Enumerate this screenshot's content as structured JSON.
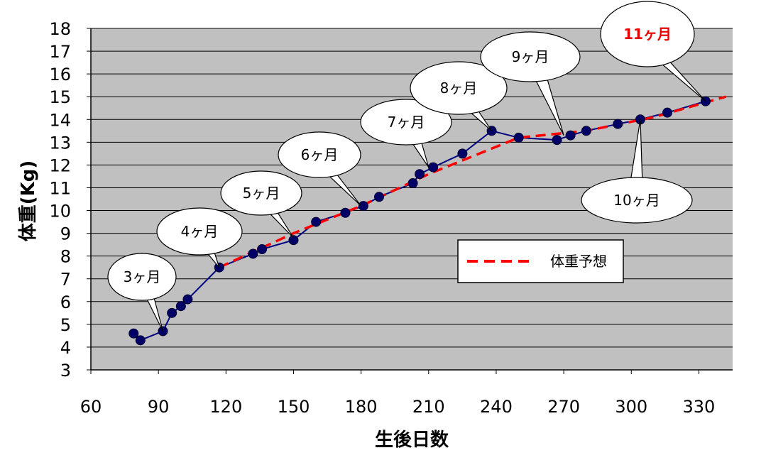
{
  "chart_data": {
    "type": "line",
    "xlabel": "生後日数",
    "ylabel": "体重(Kg)",
    "xlim": [
      60,
      345
    ],
    "ylim": [
      3,
      18
    ],
    "xticks": [
      60,
      90,
      120,
      150,
      180,
      210,
      240,
      270,
      300,
      330
    ],
    "yticks": [
      3,
      4,
      5,
      6,
      7,
      8,
      9,
      10,
      11,
      12,
      13,
      14,
      15,
      16,
      17,
      18
    ],
    "grid": "horizontal",
    "plot_background": "#c0c0c0",
    "legend_position": "center-right",
    "series": [
      {
        "kind": "measured",
        "color": "#000080",
        "marker_color": "#000066",
        "x": [
          79,
          82,
          92,
          96,
          100,
          103,
          117,
          132,
          136,
          150,
          160,
          173,
          181,
          188,
          203,
          206,
          212,
          225,
          238,
          250,
          267,
          273,
          280,
          294,
          304,
          316,
          333
        ],
        "y": [
          4.6,
          4.3,
          4.7,
          5.5,
          5.8,
          6.1,
          7.5,
          8.1,
          8.3,
          8.7,
          9.5,
          9.9,
          10.2,
          10.6,
          11.2,
          11.6,
          11.9,
          12.5,
          13.5,
          13.2,
          13.1,
          13.3,
          13.5,
          13.8,
          14.0,
          14.3,
          14.8
        ]
      },
      {
        "name": "体重予想",
        "kind": "predicted",
        "color": "#ff0000",
        "style": "dashed",
        "x": [
          117,
          150,
          180,
          210,
          250,
          280,
          310,
          342
        ],
        "y": [
          7.5,
          9.0,
          10.2,
          11.6,
          13.2,
          13.5,
          14.1,
          15.0
        ]
      }
    ],
    "annotations": [
      {
        "text": "3ヶ月",
        "x": 92,
        "y": 4.7,
        "color": "#000000"
      },
      {
        "text": "4ヶ月",
        "x": 117,
        "y": 7.5,
        "color": "#000000"
      },
      {
        "text": "5ヶ月",
        "x": 150,
        "y": 8.8,
        "color": "#000000"
      },
      {
        "text": "6ヶ月",
        "x": 180,
        "y": 10.2,
        "color": "#000000"
      },
      {
        "text": "7ヶ月",
        "x": 210,
        "y": 11.9,
        "color": "#000000"
      },
      {
        "text": "8ヶ月",
        "x": 238,
        "y": 13.5,
        "color": "#000000"
      },
      {
        "text": "9ヶ月",
        "x": 270,
        "y": 13.3,
        "color": "#000000"
      },
      {
        "text": "10ヶ月",
        "x": 304,
        "y": 14.0,
        "color": "#000000"
      },
      {
        "text": "11ヶ月",
        "x": 333,
        "y": 14.8,
        "color": "#e60000"
      }
    ]
  }
}
